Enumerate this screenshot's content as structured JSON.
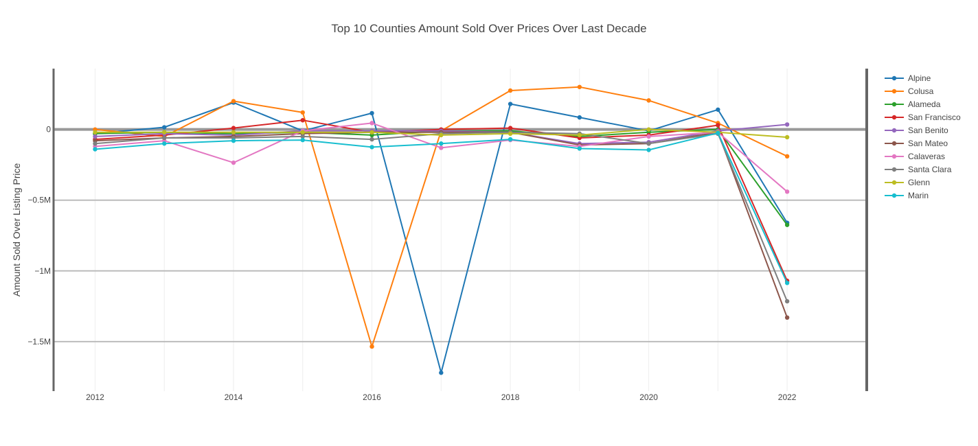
{
  "chart_data": {
    "type": "line",
    "title": "Top 10 Counties Amount Sold Over Prices Over Last Decade",
    "xlabel": "",
    "ylabel": "Amount Sold Over Listing Price",
    "x": [
      2012,
      2013,
      2014,
      2015,
      2016,
      2017,
      2018,
      2019,
      2020,
      2021,
      2022
    ],
    "x_ticks": [
      "2012",
      "2014",
      "2016",
      "2018",
      "2020",
      "2022"
    ],
    "y_ticks": [
      {
        "value": 0,
        "label": "0"
      },
      {
        "value": -500000,
        "label": "−0.5M"
      },
      {
        "value": -1000000,
        "label": "−1M"
      },
      {
        "value": -1500000,
        "label": "−1.5M"
      }
    ],
    "xlim": [
      2011.4,
      2023.15
    ],
    "ylim": [
      -1850000,
      430000
    ],
    "legend_position": "top-right",
    "series": [
      {
        "name": "Alpine",
        "color": "#1f77b4",
        "values": [
          -30000,
          15000,
          190000,
          -10000,
          115000,
          -1720000,
          180000,
          85000,
          -10000,
          140000,
          -660000
        ]
      },
      {
        "name": "Colusa",
        "color": "#ff7f0e",
        "values": [
          0,
          -50000,
          200000,
          120000,
          -1535000,
          -10000,
          275000,
          300000,
          205000,
          45000,
          -190000
        ]
      },
      {
        "name": "Alameda",
        "color": "#2ca02c",
        "values": [
          -30000,
          -20000,
          -30000,
          -20000,
          -40000,
          -10000,
          -10000,
          -50000,
          -20000,
          0,
          -675000
        ]
      },
      {
        "name": "San Francisco",
        "color": "#d62728",
        "values": [
          -70000,
          -40000,
          10000,
          65000,
          -20000,
          0,
          10000,
          -60000,
          -40000,
          30000,
          -1070000
        ]
      },
      {
        "name": "San Benito",
        "color": "#9467bd",
        "values": [
          -50000,
          -30000,
          -40000,
          -10000,
          -10000,
          -10000,
          -20000,
          -100000,
          -90000,
          -10000,
          35000
        ]
      },
      {
        "name": "San Mateo",
        "color": "#8c564b",
        "values": [
          -80000,
          -60000,
          -50000,
          -30000,
          -20000,
          -20000,
          -20000,
          -110000,
          -100000,
          -20000,
          -1330000
        ]
      },
      {
        "name": "Calaveras",
        "color": "#e377c2",
        "values": [
          -120000,
          -80000,
          -235000,
          -10000,
          45000,
          -130000,
          -75000,
          -120000,
          -50000,
          -20000,
          -440000
        ]
      },
      {
        "name": "Santa Clara",
        "color": "#7f7f7f",
        "values": [
          -100000,
          -60000,
          -60000,
          -50000,
          -70000,
          -30000,
          -20000,
          -30000,
          -100000,
          -30000,
          -1215000
        ]
      },
      {
        "name": "Glenn",
        "color": "#bcbd22",
        "values": [
          -20000,
          -20000,
          -20000,
          -20000,
          -20000,
          -40000,
          -30000,
          -40000,
          0,
          -20000,
          -55000
        ]
      },
      {
        "name": "Marin",
        "color": "#17becf",
        "values": [
          -140000,
          -100000,
          -80000,
          -75000,
          -125000,
          -100000,
          -70000,
          -135000,
          -145000,
          -25000,
          -1085000
        ]
      }
    ]
  }
}
